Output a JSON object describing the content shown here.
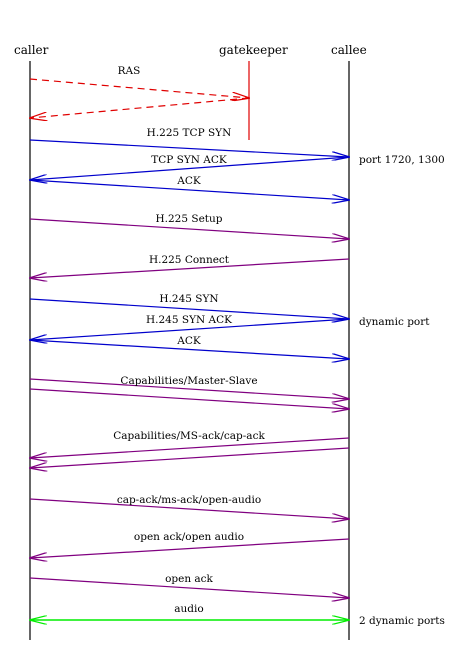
{
  "participants": [
    {
      "id": "caller",
      "label": "caller"
    },
    {
      "id": "gatekeeper",
      "label": "gatekeeper"
    },
    {
      "id": "callee",
      "label": "callee"
    }
  ],
  "colors": {
    "ras": "#e00000",
    "tcp": "#0000cc",
    "h225": "#800080",
    "media": "#00ee00",
    "line": "#000000"
  },
  "messages": [
    {
      "id": "ras-request",
      "label": "RAS",
      "from": "caller",
      "to": "gatekeeper",
      "color": "ras",
      "style": "dashed"
    },
    {
      "id": "ras-response",
      "label": "",
      "from": "gatekeeper",
      "to": "caller",
      "color": "ras",
      "style": "dashed"
    },
    {
      "id": "h225-tcp-syn",
      "label": "H.225 TCP SYN",
      "from": "caller",
      "to": "callee",
      "color": "tcp"
    },
    {
      "id": "tcp-syn-ack",
      "label": "TCP SYN ACK",
      "from": "callee",
      "to": "caller",
      "color": "tcp"
    },
    {
      "id": "tcp-ack",
      "label": "ACK",
      "from": "caller",
      "to": "callee",
      "color": "tcp"
    },
    {
      "id": "h225-setup",
      "label": "H.225 Setup",
      "from": "caller",
      "to": "callee",
      "color": "h225"
    },
    {
      "id": "h225-connect",
      "label": "H.225 Connect",
      "from": "callee",
      "to": "caller",
      "color": "h225"
    },
    {
      "id": "h245-syn",
      "label": "H.245 SYN",
      "from": "caller",
      "to": "callee",
      "color": "tcp"
    },
    {
      "id": "h245-syn-ack",
      "label": "H.245 SYN ACK",
      "from": "callee",
      "to": "caller",
      "color": "tcp"
    },
    {
      "id": "h245-ack",
      "label": "ACK",
      "from": "caller",
      "to": "callee",
      "color": "tcp"
    },
    {
      "id": "capabilities-master-slave",
      "label": "Capabilities/Master-Slave",
      "from": "caller",
      "to": "callee",
      "color": "h225"
    },
    {
      "id": "capabilities-master-slave-2",
      "label": "",
      "from": "caller",
      "to": "callee",
      "color": "h225"
    },
    {
      "id": "capabilities-ms-ack",
      "label": "Capabilities/MS-ack/cap-ack",
      "from": "callee",
      "to": "caller",
      "color": "h225"
    },
    {
      "id": "capabilities-ms-ack-2",
      "label": "",
      "from": "callee",
      "to": "caller",
      "color": "h225"
    },
    {
      "id": "cap-ack-ms-ack-open-audio",
      "label": "cap-ack/ms-ack/open-audio",
      "from": "caller",
      "to": "callee",
      "color": "h225"
    },
    {
      "id": "open-ack-open-audio",
      "label": "open ack/open audio",
      "from": "callee",
      "to": "caller",
      "color": "h225"
    },
    {
      "id": "open-ack",
      "label": "open ack",
      "from": "caller",
      "to": "callee",
      "color": "h225"
    },
    {
      "id": "audio",
      "label": "audio",
      "from": "caller",
      "to": "callee",
      "color": "media",
      "style": "bidirectional"
    }
  ],
  "notes": [
    {
      "id": "port-1720",
      "label": "port 1720, 1300"
    },
    {
      "id": "dynamic-port",
      "label": "dynamic port"
    },
    {
      "id": "two-dynamic-ports",
      "label": "2 dynamic ports"
    }
  ]
}
